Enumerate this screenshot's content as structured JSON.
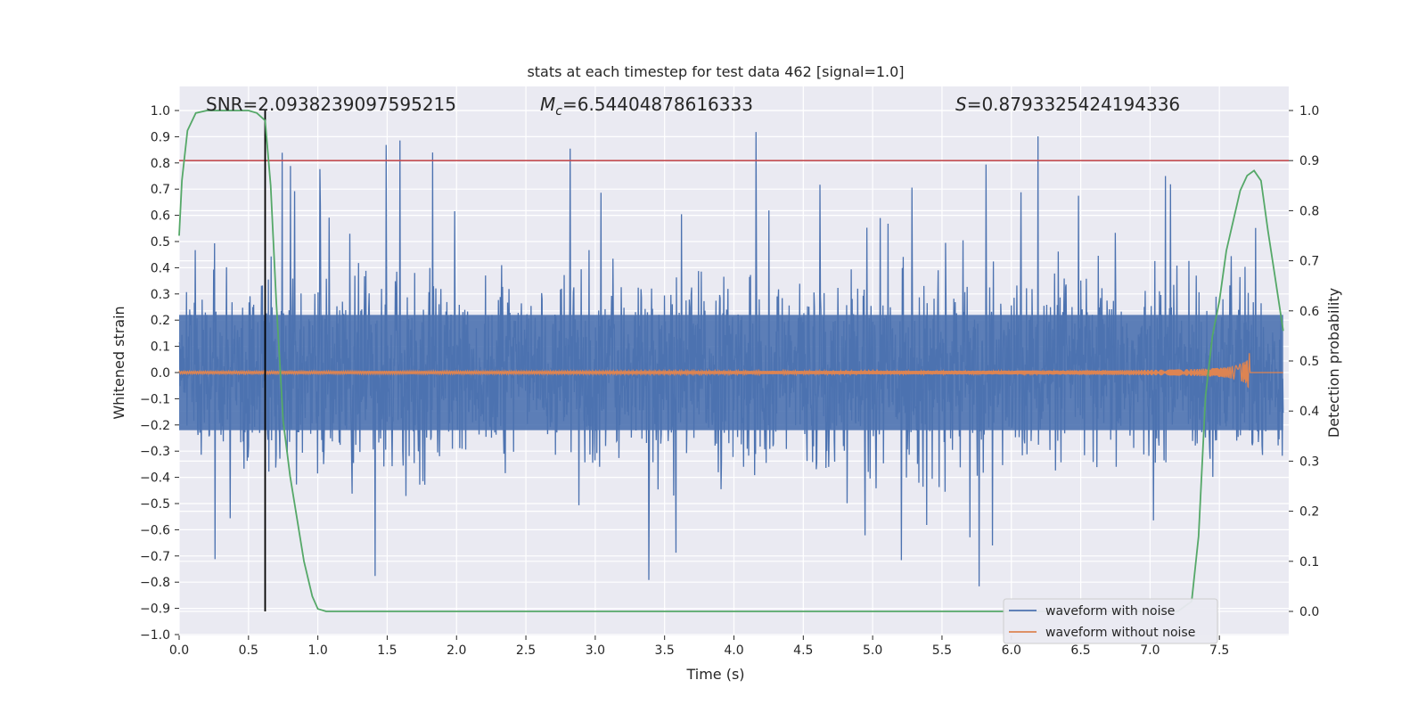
{
  "chart_data": {
    "type": "line",
    "title": "stats at each timestep for test data 462 [signal=1.0]",
    "xlabel": "Time (s)",
    "ylabel": "Whitened strain",
    "y2label": "Detection probability",
    "xlim": [
      0.0,
      8.0
    ],
    "ylim": [
      -1.0,
      1.0
    ],
    "y2lim": [
      -0.05,
      1.05
    ],
    "xticks": [
      "0.0",
      "0.5",
      "1.0",
      "1.5",
      "2.0",
      "2.5",
      "3.0",
      "3.5",
      "4.0",
      "4.5",
      "5.0",
      "5.5",
      "6.0",
      "6.5",
      "7.0",
      "7.5"
    ],
    "yticks": [
      "1.0",
      "0.9",
      "0.8",
      "0.7",
      "0.6",
      "0.5",
      "0.4",
      "0.3",
      "0.2",
      "0.1",
      "0.0",
      "−0.1",
      "−0.2",
      "−0.3",
      "−0.4",
      "−0.5",
      "−0.6",
      "−0.7",
      "−0.8",
      "−0.9",
      "−1.0"
    ],
    "y2ticks": [
      "1.0",
      "0.9",
      "0.8",
      "0.7",
      "0.6",
      "0.5",
      "0.4",
      "0.3",
      "0.2",
      "0.1",
      "0.0"
    ],
    "grid": true,
    "legend_position": "lower-right",
    "annotations": {
      "snr": "SNR=2.0938239097595215",
      "mc_prefix": "M",
      "mc_sub": "c",
      "mc_value": "=6.54404878616333",
      "s_prefix": "S",
      "s_value": "=0.8793325424194336"
    },
    "threshold_probability": 0.9,
    "marker_time": 0.62,
    "series": [
      {
        "name": "waveform with noise",
        "color": "#4c72b0",
        "axis": "left",
        "description_kind": "noise",
        "envelope": 0.42,
        "spike_max": 0.99
      },
      {
        "name": "waveform without noise",
        "color": "#dd8452",
        "axis": "left",
        "description_kind": "chirp",
        "merger_time": 7.72,
        "peak_amplitude": 0.08
      },
      {
        "name": "",
        "color": "#55a868",
        "axis": "right",
        "x": [
          0.0,
          0.02,
          0.06,
          0.12,
          0.2,
          0.3,
          0.4,
          0.5,
          0.56,
          0.62,
          0.66,
          0.7,
          0.75,
          0.8,
          0.9,
          0.96,
          1.0,
          1.06,
          1.2,
          2.0,
          3.0,
          4.0,
          5.0,
          6.0,
          7.0,
          7.2,
          7.3,
          7.35,
          7.4,
          7.45,
          7.5,
          7.55,
          7.6,
          7.65,
          7.7,
          7.75,
          7.8,
          7.85,
          7.9,
          7.96
        ],
        "y": [
          0.75,
          0.86,
          0.96,
          0.995,
          1.0,
          1.0,
          1.0,
          1.0,
          0.995,
          0.98,
          0.85,
          0.62,
          0.38,
          0.27,
          0.1,
          0.03,
          0.005,
          0.0,
          0.0,
          0.0,
          0.0,
          0.0,
          0.0,
          0.0,
          0.0,
          0.0,
          0.02,
          0.15,
          0.43,
          0.55,
          0.62,
          0.72,
          0.78,
          0.84,
          0.87,
          0.88,
          0.86,
          0.76,
          0.67,
          0.56
        ]
      },
      {
        "name": "",
        "color": "#c44e52",
        "axis": "right",
        "kind": "threshold",
        "y": [
          0.9
        ]
      }
    ],
    "legend": [
      "waveform with noise",
      "waveform without noise"
    ]
  }
}
